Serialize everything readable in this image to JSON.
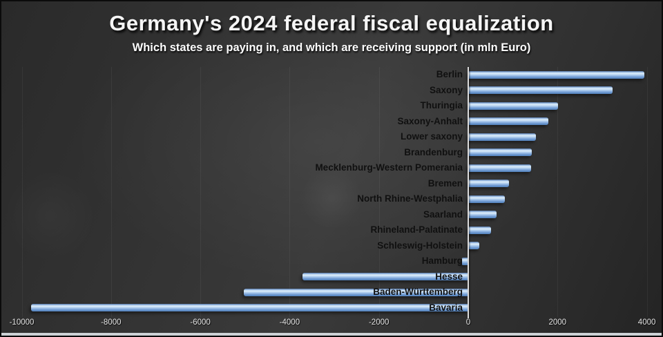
{
  "header": {
    "title": "Germany's 2024 federal fiscal equalization",
    "subtitle": "Which states are paying in, and which are receiving support (in mln Euro)"
  },
  "chart_data": {
    "type": "bar",
    "orientation": "horizontal",
    "title": "Germany's 2024 federal fiscal equalization",
    "subtitle": "Which states are paying in, and which are receiving support (in mln Euro)",
    "unit": "mln Euro",
    "categories": [
      "Berlin",
      "Saxony",
      "Thuringia",
      "Saxony-Anhalt",
      "Lower saxony",
      "Brandenburg",
      "Mecklenburg-Western Pomerania",
      "Bremen",
      "North Rhine-Westphalia",
      "Saarland",
      "Rhineland-Palatinate",
      "Schleswig-Holstein",
      "Hamburg",
      "Hesse",
      "Baden-Württemberg",
      "Bavaria"
    ],
    "values": [
      3940,
      3240,
      2010,
      1790,
      1520,
      1430,
      1400,
      920,
      820,
      630,
      510,
      250,
      -150,
      -3720,
      -5030,
      -9790
    ],
    "x_ticks": [
      -10000,
      -8000,
      -6000,
      -4000,
      -2000,
      0,
      2000,
      4000
    ],
    "xlim": [
      -10450,
      4400
    ],
    "grid": "vertical gridlines at each x tick, faint",
    "legend": "none",
    "colors": {
      "bar_mid": "#7da5d9",
      "bar_highlight": "#ddeefb",
      "bar_shadow_edge": "#47699c",
      "zero_axis": "#dcdcdc",
      "state_label_text": "#101010",
      "tick_label_text": "#e2e2e2",
      "title_text": "#f5f5f5",
      "background": "#303030",
      "bottom_edge_strip": "#ccd1d5"
    }
  }
}
